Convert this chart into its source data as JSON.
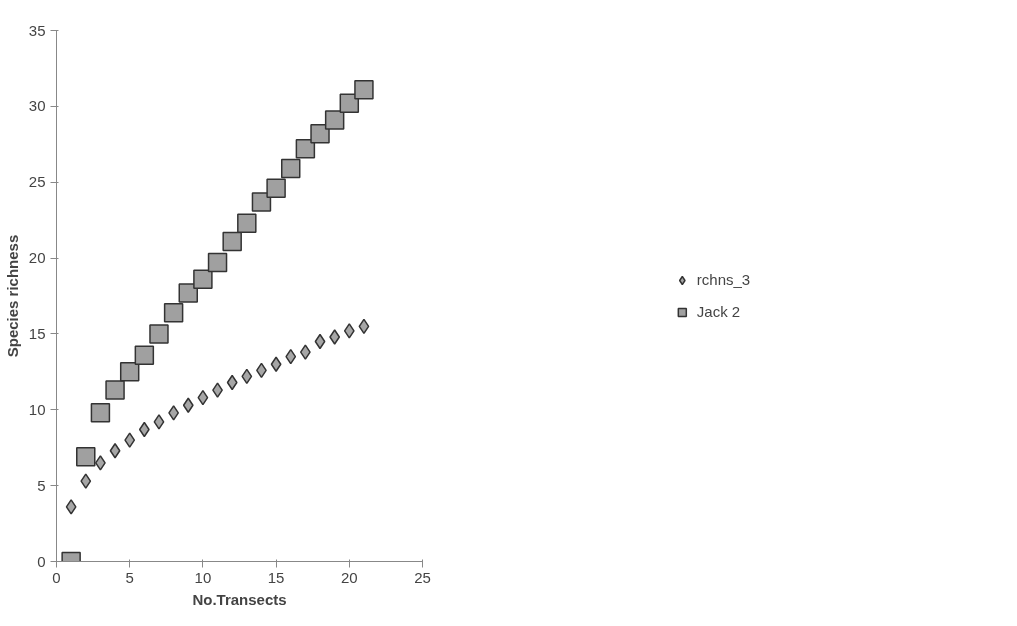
{
  "chart_data": {
    "type": "scatter",
    "xlabel": "No.Transects",
    "ylabel": "Species richness",
    "x": [
      1,
      2,
      3,
      4,
      5,
      6,
      7,
      8,
      9,
      10,
      11,
      12,
      13,
      14,
      15,
      16,
      17,
      18,
      19,
      20,
      21
    ],
    "series": [
      {
        "name": "rchns_3",
        "color": "#a6a6a6",
        "marker": "diamond",
        "values": [
          3.6,
          5.3,
          6.5,
          7.3,
          8.0,
          8.7,
          9.2,
          9.8,
          10.3,
          10.8,
          11.3,
          11.8,
          12.2,
          12.6,
          13.0,
          13.5,
          13.8,
          14.5,
          14.8,
          15.2,
          15.5
        ]
      },
      {
        "name": "Jack 2",
        "color": "#a0a0a0",
        "marker": "square",
        "values": [
          0,
          6.9,
          9.8,
          11.3,
          12.5,
          13.6,
          15.0,
          16.4,
          17.7,
          18.6,
          19.7,
          21.1,
          22.3,
          23.7,
          24.6,
          25.9,
          27.2,
          28.2,
          29.1,
          30.2,
          31.1
        ]
      }
    ],
    "xlim": [
      0,
      25
    ],
    "xticks": [
      0,
      5,
      10,
      15,
      20,
      25
    ],
    "ylim": [
      0,
      35
    ],
    "yticks": [
      0,
      5,
      10,
      15,
      20,
      25,
      30,
      35
    ],
    "grid": false,
    "legend": "right"
  }
}
